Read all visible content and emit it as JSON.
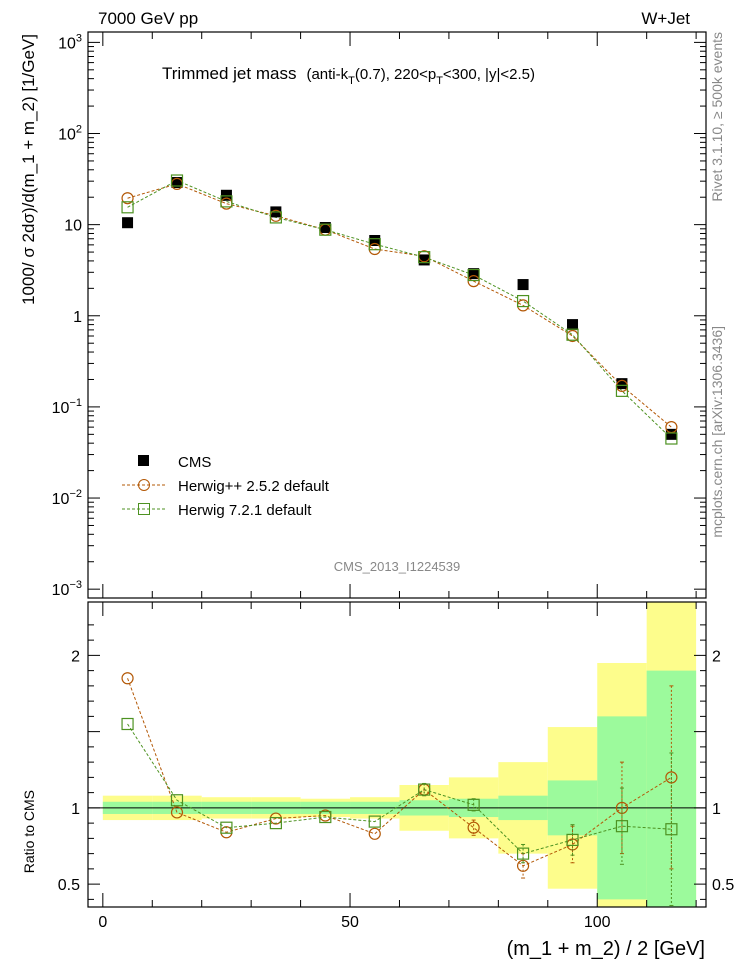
{
  "header": {
    "left": "7000 GeV pp",
    "right": "W+Jet"
  },
  "title": {
    "main": "Trimmed jet mass",
    "sub_pre": "(anti-k",
    "sub_sub1": "T",
    "sub_mid": "(0.7), 220<p",
    "sub_sub2": "T",
    "sub_post": "<300, |y|<2.5)"
  },
  "side_labels": {
    "rivet": "Rivet 3.1.10, ≥ 500k events",
    "mcplots": "mcplots.cern.ch [arXiv:1306.3436]"
  },
  "watermark": "CMS_2013_I1224539",
  "chart_data": {
    "type": "scatter",
    "xlabel": "(m_1 + m_2) / 2 [GeV]",
    "ylabel": "1000/ σ 2dσ)/d(m_1 + m_2) [1/GeV]",
    "ratio_ylabel": "Ratio to CMS",
    "xlim": [
      -3,
      122
    ],
    "ylim_log": [
      0.0008,
      1300
    ],
    "ratio_ylim": [
      0.35,
      2.35
    ],
    "x_ticks": [
      "0",
      "50",
      "100"
    ],
    "y_ticks": [
      {
        "base": "10",
        "exp": "−3"
      },
      {
        "base": "10",
        "exp": "−2"
      },
      {
        "base": "10",
        "exp": "−1"
      },
      {
        "base": "1",
        "exp": ""
      },
      {
        "base": "10",
        "exp": ""
      },
      {
        "base": "10",
        "exp": "2"
      },
      {
        "base": "10",
        "exp": "3"
      }
    ],
    "ratio_ticks": [
      "0.5",
      "1",
      "2"
    ],
    "x": [
      5,
      15,
      25,
      35,
      45,
      55,
      65,
      75,
      85,
      95,
      105,
      115
    ],
    "bin_edges": [
      0,
      10,
      20,
      30,
      40,
      50,
      60,
      70,
      80,
      90,
      100,
      110,
      120
    ],
    "legend": [
      "CMS",
      "Herwig++ 2.5.2 default",
      "Herwig 7.2.1 default"
    ],
    "series": [
      {
        "name": "CMS",
        "color": "#000000",
        "values": [
          10.5,
          29,
          21,
          13.8,
          9.3,
          6.7,
          4.1,
          2.9,
          2.2,
          0.8,
          0.18,
          0.05
        ]
      },
      {
        "name": "Herwig++ 2.5.2 default",
        "color": "#b35806",
        "values": [
          19.5,
          28,
          17,
          12.5,
          8.8,
          5.4,
          4.5,
          2.4,
          1.3,
          0.6,
          0.17,
          0.06
        ],
        "ratio": [
          1.85,
          0.97,
          0.84,
          0.93,
          0.95,
          0.83,
          1.12,
          0.87,
          0.62,
          0.76,
          1.0,
          1.2
        ],
        "ratio_err": [
          0.03,
          0.02,
          0.02,
          0.02,
          0.02,
          0.03,
          0.04,
          0.05,
          0.08,
          0.12,
          0.3,
          0.6
        ]
      },
      {
        "name": "Herwig 7.2.1 default",
        "color": "#4d9221",
        "values": [
          15.5,
          30.5,
          18,
          12,
          8.8,
          6.1,
          4.4,
          2.8,
          1.45,
          0.62,
          0.15,
          0.045
        ],
        "ratio": [
          1.55,
          1.05,
          0.87,
          0.9,
          0.94,
          0.91,
          1.12,
          1.02,
          0.7,
          0.79,
          0.88,
          0.86
        ],
        "ratio_err": [
          0.03,
          0.02,
          0.02,
          0.02,
          0.02,
          0.03,
          0.04,
          0.04,
          0.06,
          0.1,
          0.25,
          0.5
        ]
      }
    ],
    "uncertainty": {
      "green_half": [
        0.04,
        0.04,
        0.04,
        0.04,
        0.04,
        0.04,
        0.05,
        0.06,
        0.08,
        0.18,
        0.6,
        0.9
      ],
      "yellow_half": [
        0.08,
        0.08,
        0.07,
        0.07,
        0.06,
        0.07,
        0.15,
        0.2,
        0.3,
        0.53,
        0.95,
        1.4
      ],
      "green_color": "#9cfa9c",
      "yellow_color": "#fdfd8c"
    }
  }
}
